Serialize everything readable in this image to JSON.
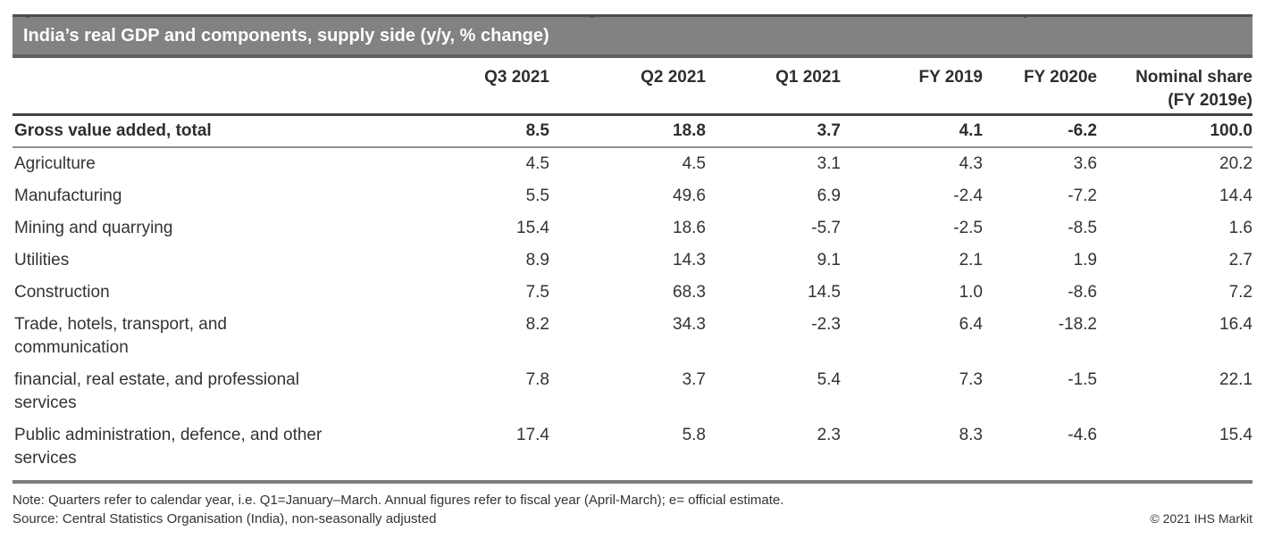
{
  "clipped_top_text": {
    "marks": [
      "y",
      "y",
      "p"
    ]
  },
  "table": {
    "title": "India’s real GDP and components, supply side (y/y, % change)",
    "columns": [
      {
        "label": "Q3 2021"
      },
      {
        "label": "Q2 2021"
      },
      {
        "label": "Q1 2021"
      },
      {
        "label": "FY 2019"
      },
      {
        "label": "FY 2020e"
      },
      {
        "label": "Nominal share",
        "sublabel": "(FY 2019e)"
      }
    ],
    "total_row": {
      "label_lines": [
        "Gross value added, total"
      ],
      "values": [
        "8.5",
        "18.8",
        "3.7",
        "4.1",
        "-6.2",
        "100.0"
      ]
    },
    "rows": [
      {
        "label_lines": [
          "Agriculture"
        ],
        "values": [
          "4.5",
          "4.5",
          "3.1",
          "4.3",
          "3.6",
          "20.2"
        ]
      },
      {
        "label_lines": [
          "Manufacturing"
        ],
        "values": [
          "5.5",
          "49.6",
          "6.9",
          "-2.4",
          "-7.2",
          "14.4"
        ]
      },
      {
        "label_lines": [
          "Mining and quarrying"
        ],
        "values": [
          "15.4",
          "18.6",
          "-5.7",
          "-2.5",
          "-8.5",
          "1.6"
        ]
      },
      {
        "label_lines": [
          "Utilities"
        ],
        "values": [
          "8.9",
          "14.3",
          "9.1",
          "2.1",
          "1.9",
          "2.7"
        ]
      },
      {
        "label_lines": [
          "Construction"
        ],
        "values": [
          "7.5",
          "68.3",
          "14.5",
          "1.0",
          "-8.6",
          "7.2"
        ]
      },
      {
        "label_lines": [
          "Trade, hotels, transport, and",
          "communication"
        ],
        "values": [
          "8.2",
          "34.3",
          "-2.3",
          "6.4",
          "-18.2",
          "16.4"
        ]
      },
      {
        "label_lines": [
          "financial, real estate, and professional",
          "services"
        ],
        "values": [
          "7.8",
          "3.7",
          "5.4",
          "7.3",
          "-1.5",
          "22.1"
        ]
      },
      {
        "label_lines": [
          "Public administration, defence, and other",
          "services"
        ],
        "values": [
          "17.4",
          "5.8",
          "2.3",
          "8.3",
          "-4.6",
          "15.4"
        ]
      }
    ]
  },
  "footer": {
    "note": "Note: Quarters refer to calendar year, i.e. Q1=January–March. Annual figures refer to fiscal year (April-March); e= official estimate.",
    "source": "Source: Central Statistics Organisation (India), non-seasonally adjusted",
    "copyright": "© 2021 IHS Markit"
  },
  "colors": {
    "title_bar_fill": "#828282",
    "title_bar_edge_top": "#4f4f4f",
    "title_bar_edge_bottom": "#5f5f5f",
    "header_separator": "#414141",
    "total_separator": "#8f8f8f",
    "bottom_bar": "#7c7c7c",
    "text": "#333333",
    "title_text": "#ffffff"
  },
  "chart_data": {
    "type": "table",
    "title": "India’s real GDP and components, supply side (y/y, % change)",
    "columns": [
      "Q3 2021",
      "Q2 2021",
      "Q1 2021",
      "FY 2019",
      "FY 2020e",
      "Nominal share (FY 2019e)"
    ],
    "rows": [
      {
        "label": "Gross value added, total",
        "values": [
          8.5,
          18.8,
          3.7,
          4.1,
          -6.2,
          100.0
        ]
      },
      {
        "label": "Agriculture",
        "values": [
          4.5,
          4.5,
          3.1,
          4.3,
          3.6,
          20.2
        ]
      },
      {
        "label": "Manufacturing",
        "values": [
          5.5,
          49.6,
          6.9,
          -2.4,
          -7.2,
          14.4
        ]
      },
      {
        "label": "Mining and quarrying",
        "values": [
          15.4,
          18.6,
          -5.7,
          -2.5,
          -8.5,
          1.6
        ]
      },
      {
        "label": "Utilities",
        "values": [
          8.9,
          14.3,
          9.1,
          2.1,
          1.9,
          2.7
        ]
      },
      {
        "label": "Construction",
        "values": [
          7.5,
          68.3,
          14.5,
          1.0,
          -8.6,
          7.2
        ]
      },
      {
        "label": "Trade, hotels, transport, and communication",
        "values": [
          8.2,
          34.3,
          -2.3,
          6.4,
          -18.2,
          16.4
        ]
      },
      {
        "label": "financial, real estate, and professional services",
        "values": [
          7.8,
          3.7,
          5.4,
          7.3,
          -1.5,
          22.1
        ]
      },
      {
        "label": "Public administration, defence, and other services",
        "values": [
          17.4,
          5.8,
          2.3,
          8.3,
          -4.6,
          15.4
        ]
      }
    ],
    "notes": [
      "Note: Quarters refer to calendar year, i.e. Q1=January–March. Annual figures refer to fiscal year (April-March); e= official estimate.",
      "Source: Central Statistics Organisation (India), non-seasonally adjusted",
      "© 2021 IHS Markit"
    ]
  }
}
